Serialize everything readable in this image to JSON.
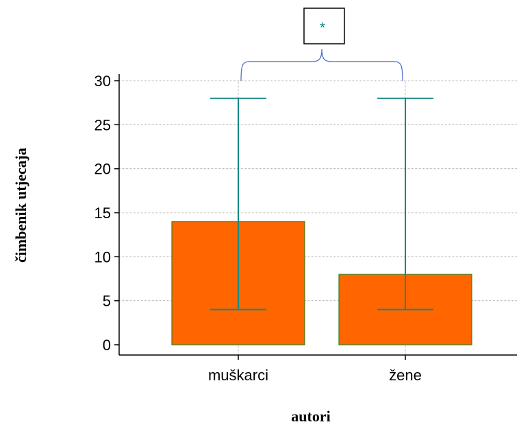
{
  "chart_data": {
    "type": "bar",
    "categories": [
      "muškarci",
      "žene"
    ],
    "values": [
      14,
      8
    ],
    "error_low": [
      4,
      4
    ],
    "error_high": [
      28,
      28
    ],
    "xlabel": "autori",
    "ylabel": "čimbenik utjecaja",
    "ylim": [
      0,
      30
    ],
    "yticks": [
      0,
      5,
      10,
      15,
      20,
      25,
      30
    ],
    "grid": true,
    "annotation": {
      "text": "*",
      "meaning": "significance bracket between groups"
    },
    "colors": {
      "bar_fill": "#ff6600",
      "bar_stroke": "#3a7d1e",
      "error_bar": "#138a86",
      "bracket": "#3f66c9",
      "grid": "#9a9a9a",
      "axis": "#000000"
    }
  }
}
